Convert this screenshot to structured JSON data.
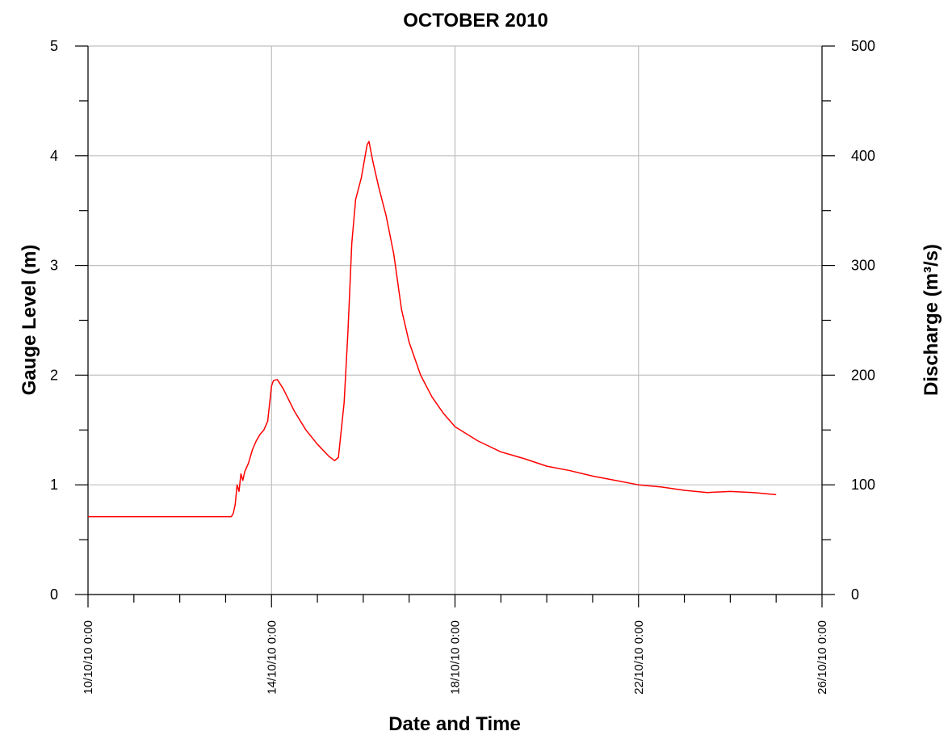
{
  "chart_data": {
    "type": "line",
    "title": "OCTOBER 2010",
    "xlabel": "Date and Time",
    "ylabel": "Gauge Level (m)",
    "y2label": "Discharge (m³/s)",
    "xlim": [
      "10/10/10 0:00",
      "26/10/10 0:00"
    ],
    "ylim": [
      0,
      5
    ],
    "y2lim": [
      0,
      500
    ],
    "yticks": [
      "0",
      "1",
      "2",
      "3",
      "4",
      "5"
    ],
    "y2ticks": [
      "0",
      "100",
      "200",
      "300",
      "400",
      "500"
    ],
    "xticks": [
      "10/10/10 0:00",
      "14/10/10 0:00",
      "18/10/10 0:00",
      "22/10/10 0:00",
      "26/10/10 0:00"
    ],
    "grid": true,
    "series": [
      {
        "color": "#ff0000",
        "points": [
          [
            "10/10/10 0:00",
            0.71
          ],
          [
            "13/10/10 3:00",
            0.71
          ],
          [
            "13/10/10 4:00",
            0.74
          ],
          [
            "13/10/10 5:00",
            0.82
          ],
          [
            "13/10/10 6:00",
            1.0
          ],
          [
            "13/10/10 7:00",
            0.94
          ],
          [
            "13/10/10 8:00",
            1.1
          ],
          [
            "13/10/10 9:00",
            1.04
          ],
          [
            "13/10/10 10:00",
            1.12
          ],
          [
            "13/10/10 12:00",
            1.2
          ],
          [
            "13/10/10 14:00",
            1.32
          ],
          [
            "13/10/10 16:00",
            1.4
          ],
          [
            "13/10/10 18:00",
            1.46
          ],
          [
            "13/10/10 20:00",
            1.5
          ],
          [
            "13/10/10 22:00",
            1.58
          ],
          [
            "14/10/10 0:00",
            1.9
          ],
          [
            "14/10/10 1:00",
            1.95
          ],
          [
            "14/10/10 3:00",
            1.96
          ],
          [
            "14/10/10 6:00",
            1.88
          ],
          [
            "14/10/10 12:00",
            1.67
          ],
          [
            "14/10/10 18:00",
            1.5
          ],
          [
            "15/10/10 0:00",
            1.37
          ],
          [
            "15/10/10 6:00",
            1.26
          ],
          [
            "15/10/10 9:00",
            1.22
          ],
          [
            "15/10/10 11:00",
            1.25
          ],
          [
            "15/10/10 14:00",
            1.75
          ],
          [
            "15/10/10 16:00",
            2.4
          ],
          [
            "15/10/10 18:00",
            3.2
          ],
          [
            "15/10/10 20:00",
            3.6
          ],
          [
            "15/10/10 23:00",
            3.8
          ],
          [
            "16/10/10 2:00",
            4.1
          ],
          [
            "16/10/10 3:00",
            4.13
          ],
          [
            "16/10/10 5:00",
            3.95
          ],
          [
            "16/10/10 8:00",
            3.72
          ],
          [
            "16/10/10 12:00",
            3.45
          ],
          [
            "16/10/10 16:00",
            3.1
          ],
          [
            "16/10/10 20:00",
            2.6
          ],
          [
            "17/10/10 0:00",
            2.3
          ],
          [
            "17/10/10 6:00",
            2.0
          ],
          [
            "17/10/10 12:00",
            1.8
          ],
          [
            "17/10/10 18:00",
            1.65
          ],
          [
            "18/10/10 0:00",
            1.53
          ],
          [
            "18/10/10 12:00",
            1.4
          ],
          [
            "19/10/10 0:00",
            1.3
          ],
          [
            "19/10/10 12:00",
            1.24
          ],
          [
            "20/10/10 0:00",
            1.17
          ],
          [
            "20/10/10 12:00",
            1.13
          ],
          [
            "21/10/10 0:00",
            1.08
          ],
          [
            "21/10/10 12:00",
            1.04
          ],
          [
            "22/10/10 0:00",
            1.0
          ],
          [
            "22/10/10 12:00",
            0.98
          ],
          [
            "23/10/10 0:00",
            0.95
          ],
          [
            "23/10/10 12:00",
            0.93
          ],
          [
            "24/10/10 0:00",
            0.94
          ],
          [
            "24/10/10 12:00",
            0.93
          ],
          [
            "25/10/10 0:00",
            0.91
          ]
        ]
      }
    ]
  }
}
